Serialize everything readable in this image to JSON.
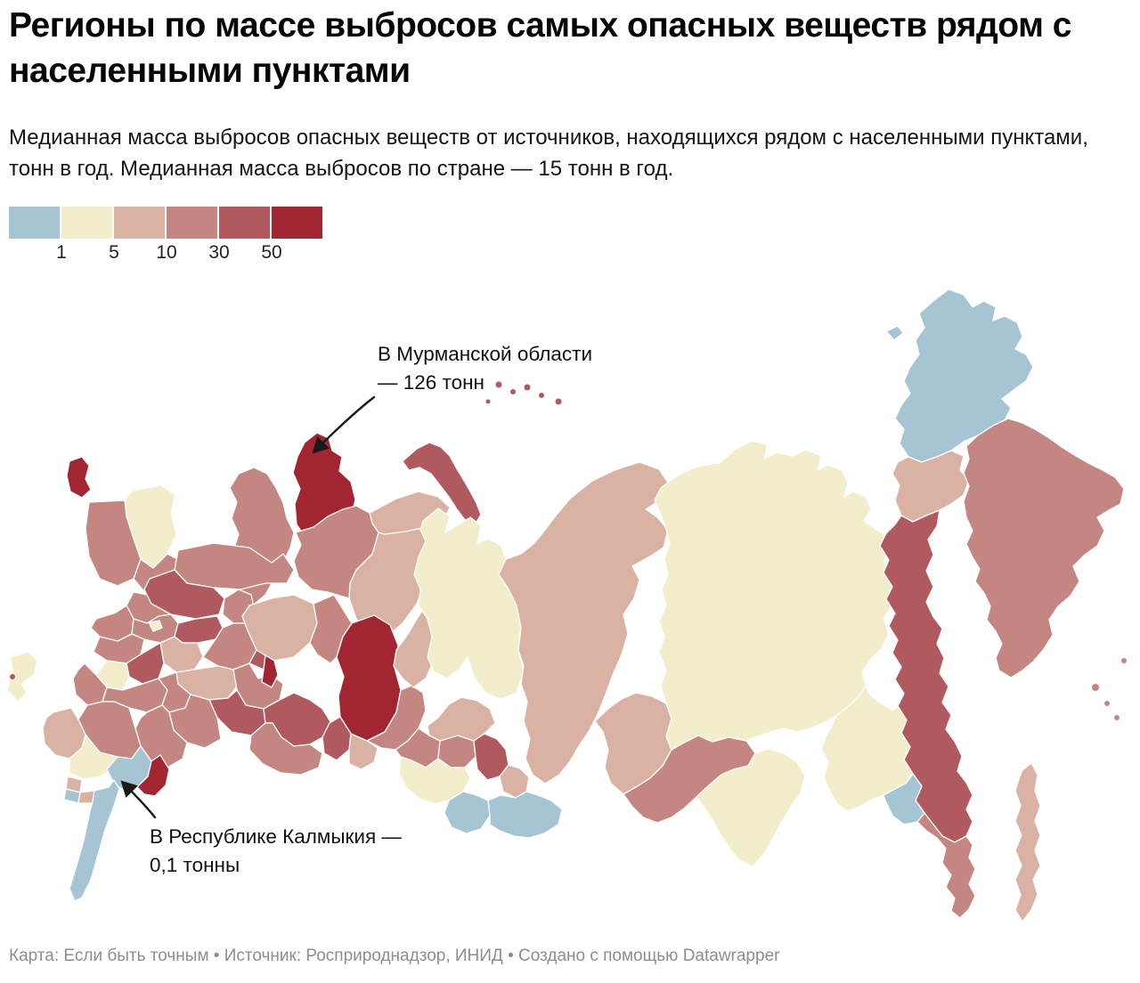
{
  "header": {
    "title": "Регионы по массе выбросов самых опасных веществ рядом с населенными пунктами",
    "subtitle": "Медианная масса выбросов опасных веществ от источников, находящихся рядом с населенными пунктами, тонн в год. Медианная масса выбросов по стране — 15 тонн в год."
  },
  "legend": {
    "bucket_order": [
      "lt1",
      "b1_5",
      "b5_10",
      "b10_30",
      "b30_50",
      "gt50"
    ],
    "tick_labels": [
      "1",
      "5",
      "10",
      "30",
      "50"
    ]
  },
  "annotations": {
    "murmansk": {
      "line1": "В Мурманской области",
      "line2": "— 126 тонн"
    },
    "kalmykia": {
      "line1": "В Республике Калмыкия —",
      "line2": "0,1 тонны"
    }
  },
  "footer": {
    "credits": "Карта: Если быть точным • Источник: Росприроднадзор, ИНИД • Создано с помощью Datawrapper"
  },
  "chart_data": {
    "type": "choropleth",
    "title": "Регионы по массе выбросов самых опасных веществ рядом с населенными пунктами",
    "unit": "тонн в год",
    "country_median_tons": 15,
    "breaks": [
      1,
      5,
      10,
      30,
      50
    ],
    "palette": {
      "lt1": "#a5c4d4",
      "b1_5": "#f2edca",
      "b5_10": "#dab2a3",
      "b10_30": "#c48680",
      "b30_50": "#b05a5f",
      "gt50": "#a22532"
    },
    "highlighted": [
      {
        "region": "Мурманская область",
        "tons": 126
      },
      {
        "region": "Республика Калмыкия",
        "tons": 0.1
      }
    ],
    "regions": [
      {
        "id": "murmansk",
        "name": "Мурманская область",
        "bucket": "gt50"
      },
      {
        "id": "karelia",
        "name": "Республика Карелия",
        "bucket": "b10_30"
      },
      {
        "id": "kaliningrad",
        "name": "Калининградская область",
        "bucket": "gt50"
      },
      {
        "id": "leningrad",
        "name": "Ленинградская область",
        "bucket": "b1_5"
      },
      {
        "id": "pskov",
        "name": "Псковская область",
        "bucket": "b10_30"
      },
      {
        "id": "novgorod",
        "name": "Новгородская область",
        "bucket": "b10_30"
      },
      {
        "id": "tver",
        "name": "Тверская область",
        "bucket": "b10_30"
      },
      {
        "id": "vologda",
        "name": "Вологодская область",
        "bucket": "b10_30"
      },
      {
        "id": "yaroslavl_kostroma",
        "name": "Ярославская и Костромская области",
        "bucket": "b30_50"
      },
      {
        "id": "mari_el",
        "name": "Республика Марий Эл",
        "bucket": "b10_30"
      },
      {
        "id": "smolensk",
        "name": "Смоленская область",
        "bucket": "b10_30"
      },
      {
        "id": "moscow_obl",
        "name": "Московская область",
        "bucket": "b10_30"
      },
      {
        "id": "vladimir",
        "name": "Владимирская область",
        "bucket": "b30_50"
      },
      {
        "id": "ryazan",
        "name": "Рязанская область",
        "bucket": "b5_10"
      },
      {
        "id": "kaluga_bryansk",
        "name": "Калужская и Брянская области",
        "bucket": "b10_30"
      },
      {
        "id": "tula",
        "name": "Тульская и Липецкая области",
        "bucket": "b30_50"
      },
      {
        "id": "oryol",
        "name": "Орловская область",
        "bucket": "b1_5"
      },
      {
        "id": "kursk",
        "name": "Курская и Белгородская области",
        "bucket": "b10_30"
      },
      {
        "id": "voronezh",
        "name": "Воронежская область",
        "bucket": "b10_30"
      },
      {
        "id": "tambov",
        "name": "Тамбовская область",
        "bucket": "b10_30"
      },
      {
        "id": "nizhny",
        "name": "Нижегородская область",
        "bucket": "b10_30"
      },
      {
        "id": "chuvashia",
        "name": "Чувашская Республика",
        "bucket": "b30_50"
      },
      {
        "id": "udmurtia",
        "name": "Удмуртская Республика",
        "bucket": "gt50"
      },
      {
        "id": "mordovia_penza",
        "name": "Пензенская область и Мордовия",
        "bucket": "b5_10"
      },
      {
        "id": "tatarstan",
        "name": "Республика Татарстан",
        "bucket": "b10_30"
      },
      {
        "id": "ulyanovsk_samara",
        "name": "Самарская и Ульяновская области",
        "bucket": "b30_50"
      },
      {
        "id": "saratov",
        "name": "Саратовская область",
        "bucket": "b10_30"
      },
      {
        "id": "volgograd",
        "name": "Волгоградская область",
        "bucket": "b10_30"
      },
      {
        "id": "rostov",
        "name": "Ростовская область",
        "bucket": "b10_30"
      },
      {
        "id": "krasnodar",
        "name": "Краснодарский край",
        "bucket": "b5_10"
      },
      {
        "id": "crimea",
        "name": "Республика Крым",
        "bucket": "b1_5"
      },
      {
        "id": "stavropol",
        "name": "Ставропольский край",
        "bucket": "b1_5"
      },
      {
        "id": "kalmykia",
        "name": "Республика Калмыкия",
        "bucket": "lt1"
      },
      {
        "id": "astrakhan",
        "name": "Астраханская область",
        "bucket": "gt50"
      },
      {
        "id": "kabardino",
        "name": "Кабардино-Балкарская Республика",
        "bucket": "b5_10"
      },
      {
        "id": "ossetia",
        "name": "Северная Осетия",
        "bucket": "lt1"
      },
      {
        "id": "chechnya",
        "name": "Чеченская Республика",
        "bucket": "b5_10"
      },
      {
        "id": "dagestan",
        "name": "Республика Дагестан",
        "bucket": "lt1"
      },
      {
        "id": "kirov",
        "name": "Кировская область",
        "bucket": "b5_10"
      },
      {
        "id": "perm",
        "name": "Пермский край",
        "bucket": "b10_30"
      },
      {
        "id": "komi",
        "name": "Республика Коми",
        "bucket": "b5_10"
      },
      {
        "id": "nenets",
        "name": "Ненецкий АО",
        "bucket": "b5_10"
      },
      {
        "id": "arkhangelsk",
        "name": "Архангельская область",
        "bucket": "b10_30"
      },
      {
        "id": "novaya_zemlya",
        "name": "Новая Земля",
        "bucket": "b30_50"
      },
      {
        "id": "bashkortostan",
        "name": "Республика Башкортостан",
        "bucket": "b30_50"
      },
      {
        "id": "orenburg",
        "name": "Оренбургская область",
        "bucket": "b10_30"
      },
      {
        "id": "sverdlovsk",
        "name": "Свердловская область",
        "bucket": "gt50"
      },
      {
        "id": "chelyabinsk",
        "name": "Челябинская область",
        "bucket": "b30_50"
      },
      {
        "id": "kurgan",
        "name": "Курганская область",
        "bucket": "b5_10"
      },
      {
        "id": "tyumen",
        "name": "Тюменская область",
        "bucket": "b10_30"
      },
      {
        "id": "khmao",
        "name": "ХМАО — Югра",
        "bucket": "b5_10"
      },
      {
        "id": "yamal",
        "name": "Ямало-Ненецкий АО",
        "bucket": "b1_5"
      },
      {
        "id": "omsk",
        "name": "Омская область",
        "bucket": "b10_30"
      },
      {
        "id": "novosibirsk",
        "name": "Новосибирская область",
        "bucket": "b10_30"
      },
      {
        "id": "tomsk",
        "name": "Томская область",
        "bucket": "b5_10"
      },
      {
        "id": "kemerovo",
        "name": "Кемеровская область",
        "bucket": "b30_50"
      },
      {
        "id": "altai_krai",
        "name": "Алтайский край",
        "bucket": "b1_5"
      },
      {
        "id": "altai_rep",
        "name": "Республика Алтай",
        "bucket": "lt1"
      },
      {
        "id": "khakassia",
        "name": "Республика Хакасия",
        "bucket": "b5_10"
      },
      {
        "id": "tuva",
        "name": "Республика Тыва",
        "bucket": "lt1"
      },
      {
        "id": "krasnoyarsk",
        "name": "Красноярский край",
        "bucket": "b5_10"
      },
      {
        "id": "irkutsk",
        "name": "Иркутская область",
        "bucket": "b5_10"
      },
      {
        "id": "buryatia",
        "name": "Республика Бурятия",
        "bucket": "b10_30"
      },
      {
        "id": "zabaikalsky",
        "name": "Забайкальский край",
        "bucket": "b1_5"
      },
      {
        "id": "yakutia",
        "name": "Республика Саха (Якутия)",
        "bucket": "b1_5"
      },
      {
        "id": "chukotka",
        "name": "Чукотский АО",
        "bucket": "lt1"
      },
      {
        "id": "wrangel",
        "name": "остров Врангеля",
        "bucket": "lt1"
      },
      {
        "id": "magadan",
        "name": "Магаданская область",
        "bucket": "b5_10"
      },
      {
        "id": "kamchatka",
        "name": "Камчатский край",
        "bucket": "b10_30"
      },
      {
        "id": "khabarovsk",
        "name": "Хабаровский край",
        "bucket": "b30_50"
      },
      {
        "id": "amur",
        "name": "Амурская область",
        "bucket": "b1_5"
      },
      {
        "id": "jewish",
        "name": "Еврейская АО",
        "bucket": "lt1"
      },
      {
        "id": "primorye",
        "name": "Приморский край",
        "bucket": "b10_30"
      },
      {
        "id": "sakhalin",
        "name": "Сахалинская область",
        "bucket": "b5_10"
      }
    ]
  }
}
